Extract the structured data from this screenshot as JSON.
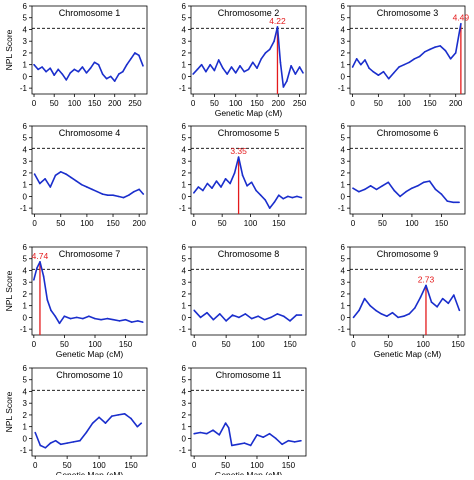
{
  "chart_data": [
    {
      "type": "line",
      "title": "Chromosome 1",
      "xlabel": "",
      "ylabel": "NPL Score",
      "xlim": [
        -5,
        280
      ],
      "ylim": [
        -1.5,
        6
      ],
      "xticks": [
        0,
        50,
        100,
        150,
        200,
        250
      ],
      "yticks": [
        -1,
        0,
        1,
        2,
        3,
        4,
        5,
        6
      ],
      "threshold": 4.1,
      "x": [
        0,
        10,
        20,
        30,
        40,
        50,
        60,
        70,
        80,
        90,
        100,
        110,
        120,
        130,
        140,
        150,
        160,
        170,
        180,
        190,
        200,
        210,
        220,
        230,
        240,
        250,
        260,
        270
      ],
      "y": [
        1.0,
        0.6,
        0.8,
        0.4,
        0.7,
        0.1,
        0.6,
        0.2,
        -0.3,
        0.3,
        0.6,
        0.4,
        0.8,
        0.3,
        0.7,
        1.2,
        1.0,
        0.2,
        -0.2,
        0.0,
        -0.4,
        0.2,
        0.4,
        1.0,
        1.5,
        2.0,
        1.8,
        0.9
      ],
      "peak": null
    },
    {
      "type": "line",
      "title": "Chromosome 2",
      "xlabel": "Genetic Map (cM)",
      "ylabel": "",
      "xlim": [
        -5,
        265
      ],
      "ylim": [
        -1.5,
        6
      ],
      "xticks": [
        0,
        50,
        100,
        150,
        200,
        250
      ],
      "yticks": [
        -1,
        0,
        1,
        2,
        3,
        4,
        5,
        6
      ],
      "threshold": 4.1,
      "x": [
        0,
        10,
        20,
        30,
        40,
        50,
        60,
        70,
        80,
        90,
        100,
        110,
        120,
        130,
        140,
        150,
        160,
        170,
        180,
        190,
        198,
        205,
        212,
        220,
        230,
        240,
        250,
        258
      ],
      "y": [
        0.2,
        0.6,
        1.0,
        0.4,
        1.0,
        0.5,
        1.4,
        0.7,
        0.2,
        0.8,
        0.3,
        0.9,
        0.4,
        0.6,
        1.2,
        0.7,
        1.5,
        2.0,
        2.3,
        3.0,
        4.22,
        1.2,
        -0.9,
        -0.4,
        0.9,
        0.2,
        0.8,
        0.3
      ],
      "peak": {
        "x": 198,
        "y": 4.22,
        "label": "4.22"
      }
    },
    {
      "type": "line",
      "title": "Chromosome 3",
      "xlabel": "",
      "ylabel": "",
      "xlim": [
        -5,
        218
      ],
      "ylim": [
        -1.5,
        6
      ],
      "xticks": [
        0,
        50,
        100,
        150,
        200
      ],
      "yticks": [
        -1,
        0,
        1,
        2,
        3,
        4,
        5,
        6
      ],
      "threshold": 4.1,
      "x": [
        0,
        8,
        16,
        24,
        32,
        40,
        50,
        60,
        70,
        80,
        90,
        100,
        110,
        120,
        130,
        140,
        150,
        160,
        170,
        180,
        190,
        200,
        206,
        210
      ],
      "y": [
        0.8,
        1.5,
        1.0,
        1.4,
        0.7,
        0.4,
        0.1,
        0.4,
        -0.2,
        0.3,
        0.8,
        1.0,
        1.2,
        1.5,
        1.7,
        2.1,
        2.3,
        2.5,
        2.6,
        2.2,
        1.5,
        2.0,
        3.5,
        4.49
      ],
      "peak": {
        "x": 210,
        "y": 4.49,
        "label": "4.49"
      }
    },
    {
      "type": "line",
      "title": "Chromosome 4",
      "xlabel": "",
      "ylabel": "",
      "xlim": [
        -5,
        215
      ],
      "ylim": [
        -1.5,
        6
      ],
      "xticks": [
        0,
        50,
        100,
        150,
        200
      ],
      "yticks": [
        -1,
        0,
        1,
        2,
        3,
        4,
        5,
        6
      ],
      "threshold": 4.1,
      "x": [
        0,
        10,
        20,
        30,
        40,
        50,
        60,
        70,
        80,
        90,
        100,
        110,
        120,
        130,
        140,
        150,
        160,
        170,
        180,
        190,
        200,
        208
      ],
      "y": [
        1.9,
        1.1,
        1.5,
        0.8,
        1.8,
        2.1,
        1.9,
        1.6,
        1.3,
        1.0,
        0.8,
        0.6,
        0.4,
        0.2,
        0.1,
        0.1,
        0.0,
        -0.1,
        0.1,
        0.4,
        0.6,
        0.2
      ],
      "peak": null
    },
    {
      "type": "line",
      "title": "Chromosome 5",
      "xlabel": "",
      "ylabel": "",
      "xlim": [
        -5,
        198
      ],
      "ylim": [
        -1.5,
        6
      ],
      "xticks": [
        0,
        50,
        100,
        150
      ],
      "yticks": [
        -1,
        0,
        1,
        2,
        3,
        4,
        5,
        6
      ],
      "threshold": 4.1,
      "x": [
        0,
        8,
        16,
        24,
        32,
        40,
        48,
        56,
        64,
        72,
        79,
        86,
        94,
        102,
        110,
        118,
        126,
        134,
        142,
        150,
        158,
        166,
        174,
        182,
        190
      ],
      "y": [
        0.3,
        0.8,
        0.5,
        1.1,
        0.7,
        1.3,
        0.8,
        1.5,
        1.1,
        2.0,
        3.35,
        1.8,
        0.9,
        1.2,
        0.5,
        0.1,
        -0.3,
        -1.0,
        -0.5,
        0.1,
        -0.2,
        0.0,
        -0.1,
        0.0,
        -0.1
      ],
      "peak": {
        "x": 79,
        "y": 3.35,
        "label": "3.35"
      }
    },
    {
      "type": "line",
      "title": "Chromosome 6",
      "xlabel": "",
      "ylabel": "",
      "xlim": [
        -5,
        190
      ],
      "ylim": [
        -1.5,
        6
      ],
      "xticks": [
        0,
        50,
        100,
        150
      ],
      "yticks": [
        -1,
        0,
        1,
        2,
        3,
        4,
        5,
        6
      ],
      "threshold": 4.1,
      "x": [
        0,
        10,
        20,
        30,
        40,
        50,
        60,
        70,
        80,
        90,
        100,
        110,
        120,
        130,
        140,
        150,
        160,
        170,
        180
      ],
      "y": [
        0.7,
        0.4,
        0.6,
        0.9,
        0.6,
        0.9,
        1.2,
        0.5,
        0.0,
        0.4,
        0.7,
        0.9,
        1.2,
        1.3,
        0.6,
        0.2,
        -0.4,
        -0.5,
        -0.5
      ],
      "peak": null
    },
    {
      "type": "line",
      "title": "Chromosome 7",
      "xlabel": "Genetic Map (cM)",
      "ylabel": "NPL Score",
      "xlim": [
        -3,
        185
      ],
      "ylim": [
        -1.5,
        6
      ],
      "xticks": [
        0,
        50,
        100,
        150
      ],
      "yticks": [
        -1,
        0,
        1,
        2,
        3,
        4,
        5,
        6
      ],
      "threshold": 4.1,
      "x": [
        0,
        5,
        10,
        16,
        22,
        28,
        35,
        42,
        50,
        60,
        70,
        80,
        90,
        100,
        110,
        120,
        130,
        140,
        150,
        160,
        170,
        178
      ],
      "y": [
        3.2,
        4.2,
        4.74,
        3.5,
        1.5,
        0.6,
        0.1,
        -0.5,
        0.1,
        -0.1,
        0.0,
        -0.1,
        0.1,
        -0.1,
        -0.2,
        -0.1,
        -0.2,
        -0.3,
        -0.2,
        -0.4,
        -0.3,
        -0.4
      ],
      "peak": {
        "x": 10,
        "y": 4.74,
        "label": "4.74"
      }
    },
    {
      "type": "line",
      "title": "Chromosome 8",
      "xlabel": "",
      "ylabel": "",
      "xlim": [
        -5,
        175
      ],
      "ylim": [
        -1.5,
        6
      ],
      "xticks": [
        0,
        50,
        100,
        150
      ],
      "yticks": [
        -1,
        0,
        1,
        2,
        3,
        4,
        5,
        6
      ],
      "threshold": 4.1,
      "x": [
        0,
        10,
        20,
        30,
        40,
        50,
        60,
        70,
        80,
        90,
        100,
        110,
        120,
        130,
        140,
        150,
        160,
        168
      ],
      "y": [
        0.6,
        0.0,
        0.4,
        -0.2,
        0.3,
        -0.3,
        0.2,
        0.0,
        0.3,
        -0.1,
        0.1,
        -0.2,
        0.0,
        0.3,
        0.1,
        -0.3,
        0.2,
        0.2
      ],
      "peak": null
    },
    {
      "type": "line",
      "title": "Chromosome 9",
      "xlabel": "Genetic Map (cM)",
      "ylabel": "",
      "xlim": [
        -5,
        160
      ],
      "ylim": [
        -1.5,
        6
      ],
      "xticks": [
        0,
        50,
        100,
        150
      ],
      "yticks": [
        -1,
        0,
        1,
        2,
        3,
        4,
        5,
        6
      ],
      "threshold": 4.1,
      "x": [
        0,
        8,
        16,
        24,
        32,
        40,
        48,
        56,
        64,
        72,
        80,
        88,
        96,
        104,
        112,
        120,
        128,
        136,
        144,
        152
      ],
      "y": [
        0.0,
        0.6,
        1.6,
        1.0,
        0.6,
        0.3,
        0.1,
        0.4,
        0.0,
        0.1,
        0.3,
        0.8,
        1.7,
        2.73,
        1.3,
        0.9,
        1.6,
        1.2,
        1.9,
        0.6
      ],
      "peak": {
        "x": 104,
        "y": 2.73,
        "label": "2.73"
      }
    },
    {
      "type": "line",
      "title": "Chromosome 10",
      "xlabel": "Genetic Map (cM)",
      "ylabel": "NPL Score",
      "xlim": [
        -5,
        175
      ],
      "ylim": [
        -1.5,
        6
      ],
      "xticks": [
        0,
        50,
        100,
        150
      ],
      "yticks": [
        -1,
        0,
        1,
        2,
        3,
        4,
        5,
        6
      ],
      "threshold": 4.1,
      "x": [
        0,
        8,
        16,
        24,
        32,
        40,
        50,
        60,
        70,
        80,
        90,
        100,
        110,
        120,
        130,
        140,
        150,
        160,
        166
      ],
      "y": [
        0.5,
        -0.6,
        -0.8,
        -0.4,
        -0.2,
        -0.5,
        -0.4,
        -0.3,
        -0.2,
        0.5,
        1.3,
        1.8,
        1.3,
        1.9,
        2.0,
        2.1,
        1.7,
        1.0,
        1.3
      ],
      "peak": null
    },
    {
      "type": "line",
      "title": "Chromosome 11",
      "xlabel": "Genetic Map (cM)",
      "ylabel": "",
      "xlim": [
        -5,
        178
      ],
      "ylim": [
        -1.5,
        6
      ],
      "xticks": [
        0,
        50,
        100,
        150
      ],
      "yticks": [
        -1,
        0,
        1,
        2,
        3,
        4,
        5,
        6
      ],
      "threshold": 4.1,
      "x": [
        0,
        10,
        20,
        30,
        40,
        50,
        55,
        60,
        70,
        80,
        90,
        100,
        110,
        120,
        130,
        140,
        150,
        160,
        170
      ],
      "y": [
        0.4,
        0.5,
        0.4,
        0.7,
        0.3,
        1.3,
        0.9,
        -0.6,
        -0.5,
        -0.4,
        -0.6,
        0.3,
        0.1,
        0.4,
        0.0,
        -0.5,
        -0.2,
        -0.3,
        -0.2
      ],
      "peak": null
    }
  ],
  "colors": {
    "line": "#1a2ecc",
    "peak": "#e41a1c",
    "threshold": "#000000",
    "axis": "#000000"
  }
}
